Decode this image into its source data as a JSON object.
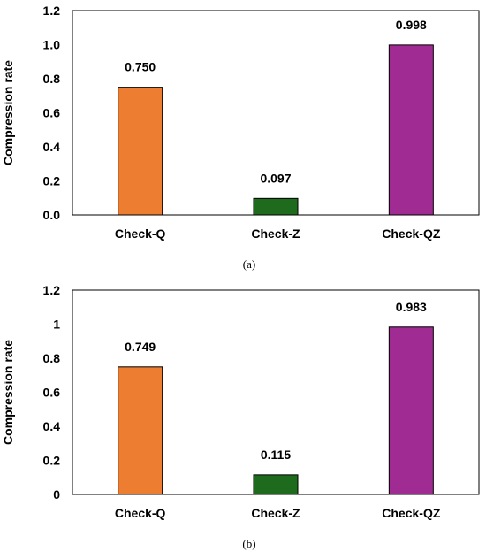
{
  "chart_data": [
    {
      "type": "bar",
      "categories": [
        "Check-Q",
        "Check-Z",
        "Check-QZ"
      ],
      "values": [
        0.75,
        0.097,
        0.998
      ],
      "data_labels": [
        "0.750",
        "0.097",
        "0.998"
      ],
      "colors": [
        "#ed7d31",
        "#1e6b1e",
        "#a02b93"
      ],
      "ylabel": "Compression rate",
      "ylim": [
        0,
        1.2
      ],
      "yticks": [
        "0.0",
        "0.2",
        "0.4",
        "0.6",
        "0.8",
        "1.0",
        "1.2"
      ],
      "caption": "(a)",
      "grid": false,
      "legend": "none"
    },
    {
      "type": "bar",
      "categories": [
        "Check-Q",
        "Check-Z",
        "Check-QZ"
      ],
      "values": [
        0.749,
        0.115,
        0.983
      ],
      "data_labels": [
        "0.749",
        "0.115",
        "0.983"
      ],
      "colors": [
        "#ed7d31",
        "#1e6b1e",
        "#a02b93"
      ],
      "ylabel": "Compression rate",
      "ylim": [
        0,
        1.2
      ],
      "yticks": [
        "0",
        "0.2",
        "0.4",
        "0.6",
        "0.8",
        "1",
        "1.2"
      ],
      "caption": "(b)",
      "grid": false,
      "legend": "none"
    }
  ]
}
